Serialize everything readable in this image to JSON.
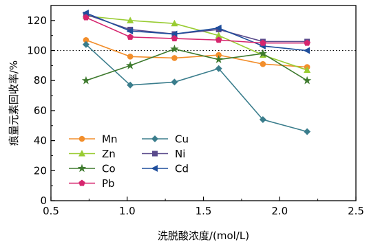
{
  "chart_data": {
    "type": "line",
    "title": "",
    "xlabel": "洗脱酸浓度/(mol/L)",
    "ylabel": "痕量元素回收率/%",
    "xlim": [
      0.5,
      2.5
    ],
    "ylim": [
      0,
      130
    ],
    "x_ticks": [
      "0.5",
      "1.0",
      "1.5",
      "2.0",
      "2.5"
    ],
    "y_ticks": [
      "0",
      "20",
      "40",
      "60",
      "80",
      "100",
      "120"
    ],
    "reference_line": {
      "y": 100,
      "style": "dotted"
    },
    "legend": {
      "position": "bottom-left",
      "columns": 2
    },
    "series": [
      {
        "name": "Mn",
        "color": "#f28e2b",
        "marker": "circle",
        "x": [
          0.73,
          1.02,
          1.31,
          1.6,
          1.89,
          2.18
        ],
        "y": [
          107,
          96,
          95,
          97,
          91,
          89
        ]
      },
      {
        "name": "Cu",
        "color": "#3a7d8c",
        "marker": "diamond",
        "x": [
          0.73,
          1.02,
          1.31,
          1.6,
          1.89,
          2.18
        ],
        "y": [
          104,
          77,
          79,
          88,
          54,
          46
        ]
      },
      {
        "name": "Zn",
        "color": "#99cc33",
        "marker": "triangle-up",
        "x": [
          0.73,
          1.02,
          1.31,
          1.6,
          1.89,
          2.18
        ],
        "y": [
          123,
          120,
          118,
          110,
          97,
          87
        ]
      },
      {
        "name": "Ni",
        "color": "#5a4b8c",
        "marker": "square",
        "x": [
          0.73,
          1.02,
          1.31,
          1.6,
          1.89,
          2.18
        ],
        "y": [
          124,
          114,
          111,
          114,
          106,
          106
        ]
      },
      {
        "name": "Co",
        "color": "#3e7a2e",
        "marker": "star",
        "x": [
          0.73,
          1.02,
          1.31,
          1.6,
          1.89,
          2.18
        ],
        "y": [
          80,
          90,
          101,
          94,
          98,
          80
        ]
      },
      {
        "name": "Cd",
        "color": "#1f4e9c",
        "marker": "triangle-left",
        "x": [
          0.73,
          1.02,
          1.31,
          1.6,
          1.89,
          2.18
        ],
        "y": [
          125,
          113,
          111,
          115,
          103,
          100
        ]
      },
      {
        "name": "Pb",
        "color": "#d6256e",
        "marker": "pentagon",
        "x": [
          0.73,
          1.02,
          1.31,
          1.6,
          1.89,
          2.18
        ],
        "y": [
          122,
          109,
          108,
          107,
          105,
          105
        ]
      }
    ]
  }
}
